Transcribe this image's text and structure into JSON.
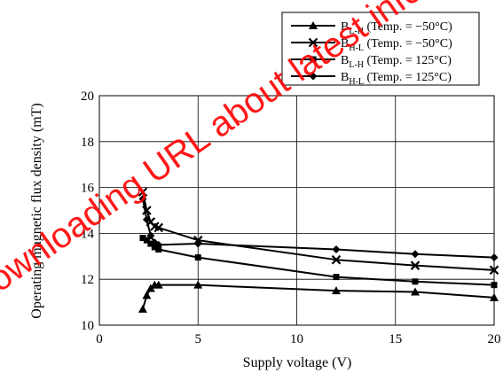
{
  "chart_data": {
    "type": "line",
    "xlabel": "Supply voltage  (V)",
    "ylabel": "Operating magnetic flux density  (mT)",
    "xlim": [
      0,
      20
    ],
    "ylim": [
      10,
      20
    ],
    "x_ticks": [
      "0",
      "5",
      "10",
      "15",
      "20"
    ],
    "y_ticks": [
      "10",
      "12",
      "14",
      "16",
      "18",
      "20"
    ],
    "grid": true,
    "legend_position": "top-right",
    "series": [
      {
        "legend_main": "B",
        "legend_sub": "L-H",
        "legend_tail": " (Temp. = −50°C)",
        "marker": "triangle",
        "points": [
          [
            2.2,
            10.7
          ],
          [
            2.4,
            11.3
          ],
          [
            2.6,
            11.6
          ],
          [
            2.8,
            11.75
          ],
          [
            3.0,
            11.75
          ],
          [
            5.0,
            11.75
          ],
          [
            12.0,
            11.5
          ],
          [
            16.0,
            11.45
          ],
          [
            20.0,
            11.2
          ]
        ]
      },
      {
        "legend_main": "B",
        "legend_sub": "H-L",
        "legend_tail": " (Temp. = −50°C)",
        "marker": "x",
        "points": [
          [
            2.2,
            15.8
          ],
          [
            2.4,
            15.0
          ],
          [
            2.6,
            14.5
          ],
          [
            2.8,
            14.3
          ],
          [
            3.0,
            14.25
          ],
          [
            5.0,
            13.7
          ],
          [
            12.0,
            12.85
          ],
          [
            16.0,
            12.6
          ],
          [
            20.0,
            12.4
          ]
        ]
      },
      {
        "legend_main": "B",
        "legend_sub": "L-H",
        "legend_tail": " (Temp. = 125°C)",
        "marker": "square",
        "points": [
          [
            2.2,
            13.8
          ],
          [
            2.4,
            13.7
          ],
          [
            2.6,
            13.55
          ],
          [
            2.8,
            13.4
          ],
          [
            3.0,
            13.3
          ],
          [
            5.0,
            12.95
          ],
          [
            12.0,
            12.1
          ],
          [
            16.0,
            11.9
          ],
          [
            20.0,
            11.75
          ]
        ]
      },
      {
        "legend_main": "B",
        "legend_sub": "H-L",
        "legend_tail": " (Temp. = 125°C)",
        "marker": "diamond",
        "points": [
          [
            2.2,
            15.5
          ],
          [
            2.4,
            14.6
          ],
          [
            2.6,
            13.9
          ],
          [
            2.8,
            13.6
          ],
          [
            3.0,
            13.5
          ],
          [
            5.0,
            13.55
          ],
          [
            12.0,
            13.3
          ],
          [
            16.0,
            13.1
          ],
          [
            20.0,
            12.95
          ]
        ]
      }
    ]
  },
  "watermark": {
    "text": "Downloading URL about latest information: https://www.semicon.toshiba.co.jp/semicon/e/index",
    "color": "#ff0000"
  }
}
